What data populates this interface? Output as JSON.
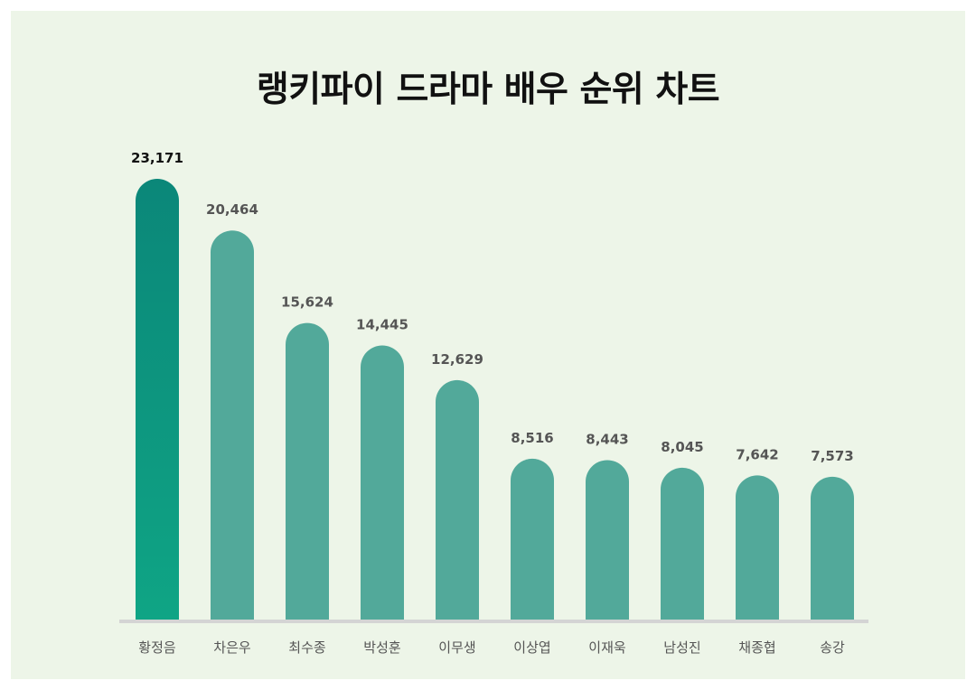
{
  "title": "랭키파이 드라마 배우 순위 차트",
  "colors": {
    "background": "#edf5e8",
    "bar": "#52a99a",
    "top_bar_gradient_start": "#0b8779",
    "top_bar_gradient_end": "#0fa585",
    "baseline": "#d4d4d4"
  },
  "chart_data": {
    "type": "bar",
    "title": "랭키파이 드라마 배우 순위 차트",
    "categories": [
      "황정음",
      "차은우",
      "최수종",
      "박성훈",
      "이무생",
      "이상엽",
      "이재욱",
      "남성진",
      "채종협",
      "송강"
    ],
    "values": [
      23171,
      20464,
      15624,
      14445,
      12629,
      8516,
      8443,
      8045,
      7642,
      7573
    ],
    "value_labels": [
      "23,171",
      "20,464",
      "15,624",
      "14,445",
      "12,629",
      "8,516",
      "8,443",
      "8,045",
      "7,642",
      "7,573"
    ],
    "xlabel": "",
    "ylabel": "",
    "grid": false,
    "legend": "none",
    "highlight_index": 0
  }
}
